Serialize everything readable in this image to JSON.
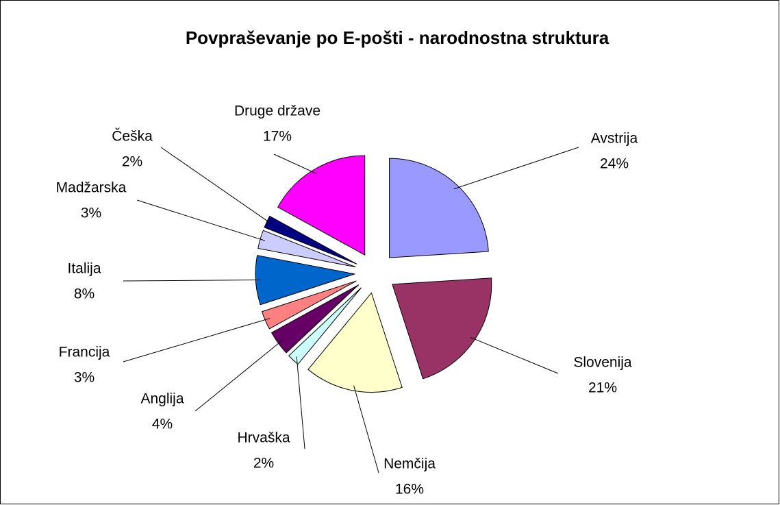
{
  "chart_data": {
    "type": "pie",
    "title": "Povpraševanje po E-pošti - narodnostna struktura",
    "categories": [
      "Avstrija",
      "Slovenija",
      "Nemčija",
      "Hrvaška",
      "Anglija",
      "Francija",
      "Italija",
      "Madžarska",
      "Češka",
      "Druge države"
    ],
    "values": [
      24,
      21,
      16,
      2,
      4,
      3,
      8,
      3,
      2,
      17
    ],
    "value_labels": [
      "24%",
      "21%",
      "16%",
      "2%",
      "4%",
      "3%",
      "8%",
      "3%",
      "2%",
      "17%"
    ],
    "colors": [
      "#9999ff",
      "#993366",
      "#ffffcc",
      "#ccffff",
      "#660066",
      "#ff8080",
      "#0066cc",
      "#ccccff",
      "#000080",
      "#ff00ff"
    ]
  }
}
